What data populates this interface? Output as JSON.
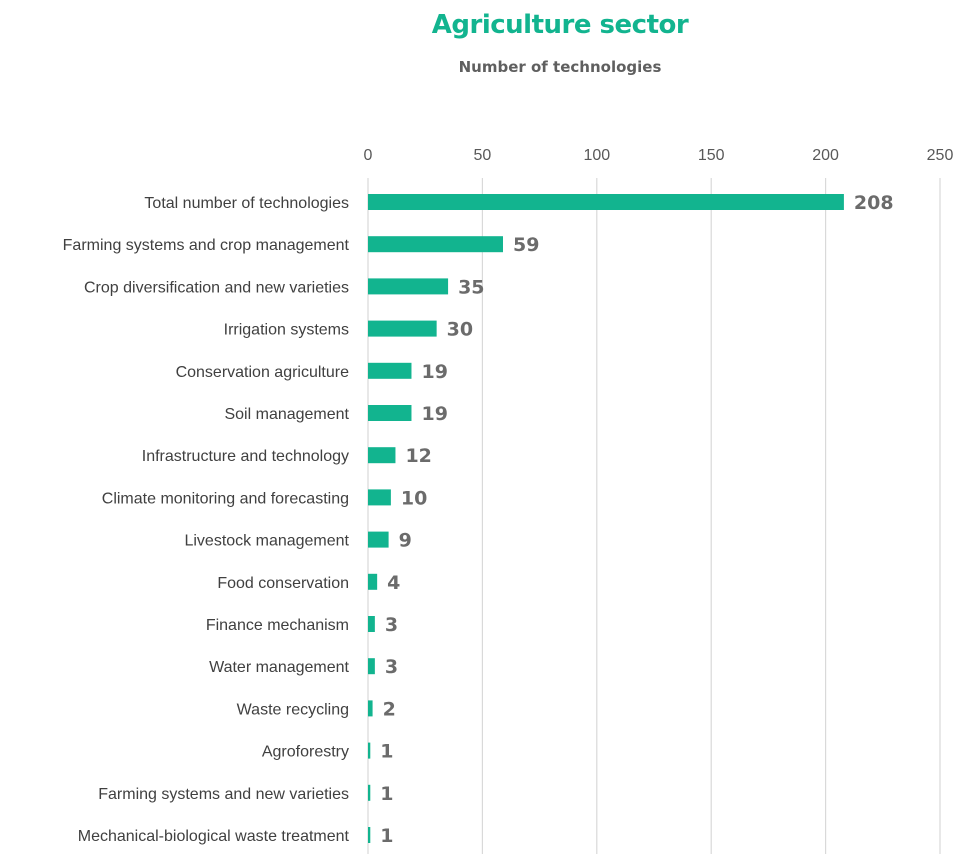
{
  "chart_data": {
    "type": "bar",
    "orientation": "horizontal",
    "title": "Agriculture sector",
    "subtitle": "Number of technologies",
    "xlim": [
      0,
      250
    ],
    "x_ticks": [
      0,
      50,
      100,
      150,
      200,
      250
    ],
    "x_axis_position": "top",
    "grid": true,
    "legend": "none",
    "bar_color": "#12b48f",
    "title_color": "#12b48f",
    "categories": [
      "Total number of technologies",
      "Farming systems and crop management",
      "Crop diversification and new varieties",
      "Irrigation systems",
      "Conservation agriculture",
      "Soil management",
      "Infrastructure and technology",
      "Climate monitoring and forecasting",
      "Livestock management",
      "Food conservation",
      "Finance mechanism",
      "Water management",
      "Waste recycling",
      "Agroforestry",
      "Farming systems and new varieties",
      "Mechanical-biological waste treatment"
    ],
    "values": [
      208,
      59,
      35,
      30,
      19,
      19,
      12,
      10,
      9,
      4,
      3,
      3,
      2,
      1,
      1,
      1
    ]
  }
}
